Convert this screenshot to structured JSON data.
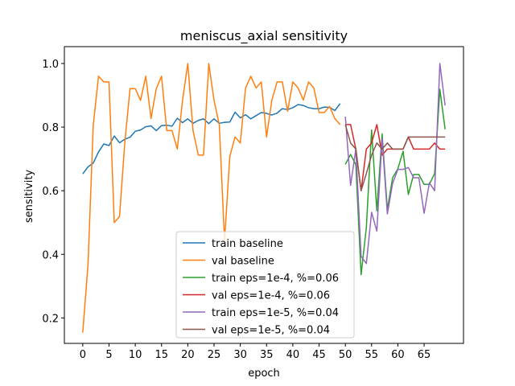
{
  "chart_data": {
    "type": "line",
    "title": "meniscus_axial sensitivity",
    "xlabel": "epoch",
    "ylabel": "sensitivity",
    "xlim": [
      -3.5,
      72.5
    ],
    "ylim": [
      0.12,
      1.053
    ],
    "xticks": [
      0,
      5,
      10,
      15,
      20,
      25,
      30,
      35,
      40,
      45,
      50,
      55,
      60,
      65
    ],
    "yticks": [
      0.2,
      0.4,
      0.6,
      0.8,
      1.0
    ],
    "ytick_labels": [
      "0.2",
      "0.4",
      "0.6",
      "0.8",
      "1.0"
    ],
    "grid": false,
    "legend_position": "lower center",
    "series": [
      {
        "name": "train baseline",
        "color": "#1f77b4",
        "x": [
          0,
          1,
          2,
          3,
          4,
          5,
          6,
          7,
          8,
          9,
          10,
          11,
          12,
          13,
          14,
          15,
          16,
          17,
          18,
          19,
          20,
          21,
          22,
          23,
          24,
          25,
          26,
          27,
          28,
          29,
          30,
          31,
          32,
          33,
          34,
          35,
          36,
          37,
          38,
          39,
          40,
          41,
          42,
          43,
          44,
          45,
          46,
          47,
          48,
          49
        ],
        "y": [
          0.653,
          0.675,
          0.687,
          0.722,
          0.747,
          0.742,
          0.772,
          0.751,
          0.762,
          0.768,
          0.787,
          0.791,
          0.801,
          0.804,
          0.789,
          0.805,
          0.806,
          0.803,
          0.828,
          0.814,
          0.826,
          0.812,
          0.821,
          0.826,
          0.811,
          0.826,
          0.812,
          0.815,
          0.816,
          0.847,
          0.829,
          0.839,
          0.826,
          0.836,
          0.846,
          0.843,
          0.838,
          0.844,
          0.858,
          0.855,
          0.861,
          0.871,
          0.868,
          0.861,
          0.858,
          0.858,
          0.863,
          0.862,
          0.852,
          0.874
        ]
      },
      {
        "name": "val baseline",
        "color": "#ff7f0e",
        "x": [
          0,
          1,
          2,
          3,
          4,
          5,
          6,
          7,
          8,
          9,
          10,
          11,
          12,
          13,
          14,
          15,
          16,
          17,
          18,
          19,
          20,
          21,
          22,
          23,
          24,
          25,
          26,
          27,
          28,
          29,
          30,
          31,
          32,
          33,
          34,
          35,
          36,
          37,
          38,
          39,
          40,
          41,
          42,
          43,
          44,
          45,
          46,
          47,
          48,
          49
        ],
        "y": [
          0.154,
          0.367,
          0.806,
          0.96,
          0.942,
          0.942,
          0.5,
          0.519,
          0.75,
          0.921,
          0.921,
          0.884,
          0.96,
          0.827,
          0.921,
          0.96,
          0.789,
          0.789,
          0.731,
          0.884,
          1.0,
          0.789,
          0.712,
          0.712,
          1.0,
          0.884,
          0.807,
          0.442,
          0.708,
          0.769,
          0.75,
          0.923,
          0.96,
          0.923,
          0.942,
          0.769,
          0.884,
          0.942,
          0.942,
          0.85,
          0.942,
          0.923,
          0.885,
          0.942,
          0.923,
          0.846,
          0.846,
          0.865,
          0.827,
          0.808
        ]
      },
      {
        "name": "train eps=1e-4, %=0.06",
        "color": "#2ca02c",
        "x": [
          50,
          51,
          52,
          53,
          54,
          55,
          56,
          57,
          58,
          59,
          60,
          61,
          62,
          63,
          64,
          65,
          66,
          67,
          68,
          69
        ],
        "y": [
          0.683,
          0.714,
          0.682,
          0.336,
          0.484,
          0.791,
          0.537,
          0.779,
          0.541,
          0.641,
          0.669,
          0.724,
          0.588,
          0.651,
          0.651,
          0.62,
          0.62,
          0.654,
          0.919,
          0.793
        ]
      },
      {
        "name": "val eps=1e-4, %=0.06",
        "color": "#d62728",
        "x": [
          50,
          51,
          52,
          53,
          54,
          55,
          56,
          57,
          58,
          59,
          60,
          61,
          62,
          63,
          64,
          65,
          66,
          67,
          68,
          69
        ],
        "y": [
          0.808,
          0.808,
          0.731,
          0.6,
          0.731,
          0.75,
          0.808,
          0.712,
          0.731,
          0.731,
          0.731,
          0.731,
          0.769,
          0.731,
          0.731,
          0.731,
          0.731,
          0.75,
          0.731,
          0.731
        ]
      },
      {
        "name": "train eps=1e-5, %=0.04",
        "color": "#9467bd",
        "x": [
          50,
          51,
          52,
          53,
          54,
          55,
          56,
          57,
          58,
          59,
          60,
          61,
          62,
          63,
          64,
          65,
          66,
          67,
          68,
          69
        ],
        "y": [
          0.833,
          0.617,
          0.731,
          0.394,
          0.371,
          0.532,
          0.473,
          0.765,
          0.527,
          0.623,
          0.667,
          0.667,
          0.673,
          0.641,
          0.641,
          0.529,
          0.625,
          0.6,
          1.0,
          0.868
        ]
      },
      {
        "name": "val eps=1e-5, %=0.04",
        "color": "#8c564b",
        "x": [
          50,
          51,
          52,
          53,
          54,
          55,
          56,
          57,
          58,
          59,
          60,
          61,
          62,
          63,
          64,
          65,
          66,
          67,
          68,
          69
        ],
        "y": [
          0.808,
          0.75,
          0.731,
          0.6,
          0.654,
          0.712,
          0.75,
          0.731,
          0.75,
          0.731,
          0.731,
          0.731,
          0.769,
          0.769,
          0.769,
          0.769,
          0.769,
          0.769,
          0.769,
          0.769
        ]
      }
    ]
  }
}
